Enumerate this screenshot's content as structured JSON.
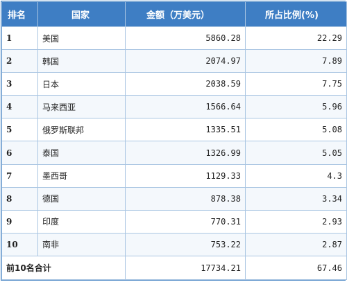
{
  "table": {
    "headers": [
      "排名",
      "国家",
      "金额（万美元）",
      "所占比例(%)"
    ],
    "rows": [
      {
        "rank": "1",
        "country": "美国",
        "amount": "5860.28",
        "share": "22.29"
      },
      {
        "rank": "2",
        "country": "韩国",
        "amount": "2074.97",
        "share": "7.89"
      },
      {
        "rank": "3",
        "country": "日本",
        "amount": "2038.59",
        "share": "7.75"
      },
      {
        "rank": "4",
        "country": "马来西亚",
        "amount": "1566.64",
        "share": "5.96"
      },
      {
        "rank": "5",
        "country": "俄罗斯联邦",
        "amount": "1335.51",
        "share": "5.08"
      },
      {
        "rank": "6",
        "country": "泰国",
        "amount": "1326.99",
        "share": "5.05"
      },
      {
        "rank": "7",
        "country": "墨西哥",
        "amount": "1129.33",
        "share": "4.3"
      },
      {
        "rank": "8",
        "country": "德国",
        "amount": "878.38",
        "share": "3.34"
      },
      {
        "rank": "9",
        "country": "印度",
        "amount": "770.31",
        "share": "2.93"
      },
      {
        "rank": "10",
        "country": "南非",
        "amount": "753.22",
        "share": "2.87"
      }
    ],
    "total": {
      "label": "前10名合计",
      "amount": "17734.21",
      "share": "67.46"
    },
    "colors": {
      "header_bg": "#3e7ec4",
      "header_text": "#ffffff",
      "grid": "#a9c5e2"
    }
  }
}
